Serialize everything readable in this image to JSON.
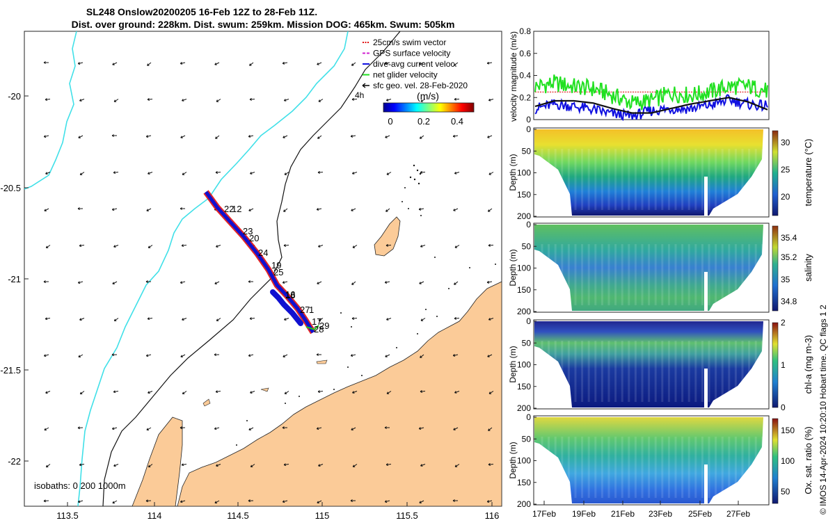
{
  "figure": {
    "title_line1": "SL248 Onslow20200205 16-Feb 12Z to 28-Feb 11Z.",
    "title_line2": "Dist. over ground: 228km. Dist. swum: 259km. Mission DOG: 465km. Swum: 505km",
    "credit": "© IMOS 14-Apr-2024 10:20:10 Hobart time. QC flags 1  2"
  },
  "map": {
    "legend": [
      {
        "label": "25cm/s swim vector",
        "color": "#e01010",
        "style": "dotted"
      },
      {
        "label": "GPS surface velocity",
        "color": "#d020d0",
        "style": "dashed"
      },
      {
        "label": "dive-avg current veloc.",
        "color": "#1010e0",
        "style": "solid"
      },
      {
        "label": "net glider velocity",
        "color": "#20e020",
        "style": "solid"
      },
      {
        "label": "sfc geo. vel. 28-Feb-2020",
        "color": "#000000",
        "style": "arrow"
      }
    ],
    "vector_scale_label": "4h",
    "colorbar_title": "(m/s)",
    "colorbar_ticks": [
      "0",
      "0.2",
      "0.4"
    ],
    "isobaths_label": "isobaths: 0   200  1000m",
    "x_ticks": [
      "113.5",
      "114",
      "114.5",
      "115",
      "115.5",
      "116"
    ],
    "y_ticks": [
      "-20",
      "-20.5",
      "-21",
      "-21.5",
      "-22"
    ],
    "day_labels": [
      "22",
      "12",
      "23",
      "20",
      "24",
      "19",
      "25",
      "16",
      "18",
      "27",
      "1",
      "17",
      "29",
      "28"
    ]
  },
  "panels": {
    "velocity": {
      "ylabel": "velocity magnitude (m/s)",
      "y_ticks": [
        "0",
        "0.2",
        "0.4",
        "0.6",
        "0.8"
      ]
    },
    "x_ticks": [
      "17Feb",
      "19Feb",
      "21Feb",
      "23Feb",
      "25Feb",
      "27Feb"
    ],
    "depth_label": "Depth (m)",
    "depth_ticks": [
      "0",
      "50",
      "100",
      "150",
      "200"
    ],
    "temperature": {
      "cbar_label": "temperature (°C)",
      "cbar_ticks": [
        "20",
        "25",
        "30"
      ]
    },
    "salinity": {
      "cbar_label": "salinity",
      "cbar_ticks": [
        "34.8",
        "35",
        "35.2",
        "35.4"
      ]
    },
    "chla": {
      "cbar_label": "chl-a (mg m-3)",
      "cbar_ticks": [
        "0",
        "1",
        "2"
      ]
    },
    "oxygen": {
      "cbar_label": "Ox. sat. ratio (%)",
      "cbar_ticks": [
        "50",
        "100",
        "150"
      ]
    }
  },
  "chart_data": {
    "type": "line",
    "title": "SL248 Onslow20200205 16-Feb 12Z to 28-Feb 11Z.",
    "xlabel": "",
    "ylabel": "velocity magnitude (m/s)",
    "ylim": [
      0,
      0.8
    ],
    "x": [
      "16-Feb 12Z",
      "17Feb",
      "18Feb",
      "19Feb",
      "20Feb",
      "21Feb",
      "22Feb",
      "23Feb",
      "24Feb",
      "25Feb",
      "26Feb",
      "27Feb",
      "28-Feb 11Z"
    ],
    "series": [
      {
        "name": "25cm/s swim vector",
        "values": [
          0.25,
          0.25,
          0.25,
          0.25,
          0.25,
          0.25,
          0.25,
          0.25,
          0.25,
          0.25,
          0.25,
          0.25,
          0.25
        ]
      },
      {
        "name": "net glider velocity",
        "values": [
          0.3,
          0.33,
          0.3,
          0.28,
          0.22,
          0.15,
          0.17,
          0.24,
          0.22,
          0.25,
          0.3,
          0.3,
          0.26
        ]
      },
      {
        "name": "dive-avg current veloc.",
        "values": [
          0.1,
          0.14,
          0.12,
          0.09,
          0.05,
          0.03,
          0.08,
          0.1,
          0.1,
          0.13,
          0.18,
          0.14,
          0.12
        ]
      },
      {
        "name": "sfc geo. vel. 28-Feb-2020",
        "values": [
          0.12,
          0.17,
          0.17,
          0.15,
          0.1,
          0.06,
          0.06,
          0.1,
          0.14,
          0.17,
          0.2,
          0.16,
          0.09
        ]
      }
    ]
  }
}
